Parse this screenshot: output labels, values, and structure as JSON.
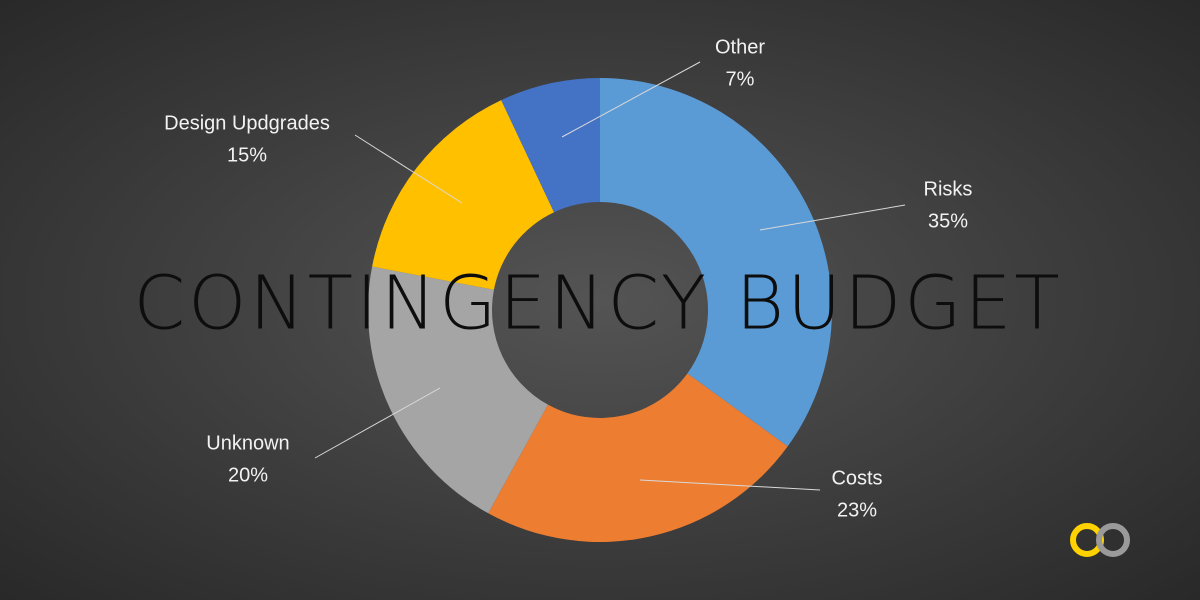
{
  "chart_data": {
    "type": "donut",
    "title": "CONTINGENCY BUDGET",
    "categories": [
      "Risks",
      "Costs",
      "Unknown",
      "Design Updgrades",
      "Other"
    ],
    "values": [
      35,
      23,
      20,
      15,
      7
    ],
    "value_labels": [
      "35%",
      "23%",
      "20%",
      "15%",
      "7%"
    ],
    "colors": [
      "#5b9bd5",
      "#ed7d31",
      "#a5a5a5",
      "#ffc000",
      "#4472c4"
    ]
  }
}
